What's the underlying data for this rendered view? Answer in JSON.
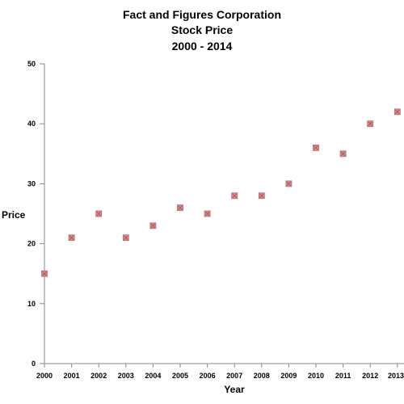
{
  "chart_data": {
    "type": "scatter",
    "title": [
      "Fact and Figures Corporation",
      "Stock Price",
      "2000 - 2014"
    ],
    "xlabel": "Year",
    "ylabel": "Price",
    "x": [
      2000,
      2001,
      2002,
      2003,
      2004,
      2005,
      2006,
      2007,
      2008,
      2009,
      2010,
      2011,
      2012,
      2013
    ],
    "y": [
      15,
      21,
      25,
      21,
      23,
      26,
      25,
      28,
      28,
      30,
      36,
      35,
      40,
      42
    ],
    "xticks": [
      "2000",
      "2001",
      "2002",
      "2003",
      "2004",
      "2005",
      "2006",
      "2007",
      "2008",
      "2009",
      "2010",
      "2011",
      "2012",
      "2013"
    ],
    "yticks": [
      "0",
      "10",
      "20",
      "30",
      "40",
      "50"
    ],
    "ylim": [
      0,
      50
    ],
    "xlim": [
      2000,
      2013
    ],
    "grid": false,
    "legend": "none",
    "marker_fill": "#d98c8c",
    "marker_stroke": "#b86a6a"
  }
}
